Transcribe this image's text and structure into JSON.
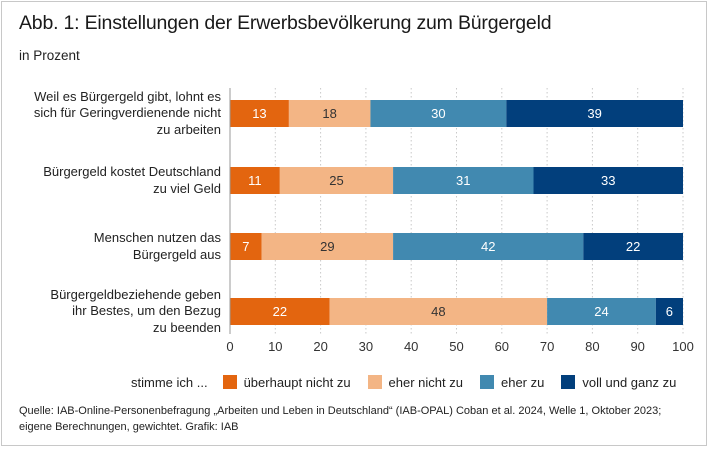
{
  "title": "Abb. 1: Einstellungen der Erwerbsbevölkerung zum Bürgergeld",
  "subtitle": "in Prozent",
  "chart_data": {
    "type": "bar",
    "orientation": "horizontal",
    "stacked": true,
    "title": "Abb. 1: Einstellungen der Erwerbsbevölkerung zum Bürgergeld",
    "subtitle": "in Prozent",
    "xlabel": "",
    "ylabel": "",
    "xlim": [
      0,
      100
    ],
    "xticks": [
      0,
      10,
      20,
      30,
      40,
      50,
      60,
      70,
      80,
      90,
      100
    ],
    "grid": "vertical dotted",
    "legend_position": "bottom",
    "legend_lead": "stimme ich ...",
    "categories": [
      [
        "Weil es Bürgergeld gibt, lohnt es",
        "sich für Geringverdienende nicht",
        "zu arbeiten"
      ],
      [
        "Bürgergeld kostet Deutschland",
        "zu viel Geld"
      ],
      [
        "Menschen nutzen das",
        "Bürgergeld aus"
      ],
      [
        "Bürgergeldbeziehende geben",
        "ihr Bestes, um den Bezug",
        "zu beenden"
      ]
    ],
    "series": [
      {
        "name": "überhaupt nicht zu",
        "color": "#e3650f",
        "label_color": "#ffffff",
        "values": [
          13,
          11,
          7,
          22
        ]
      },
      {
        "name": "eher nicht zu",
        "color": "#f3b585",
        "label_color": "#333333",
        "values": [
          18,
          25,
          29,
          48
        ]
      },
      {
        "name": "eher zu",
        "color": "#4189b0",
        "label_color": "#ffffff",
        "values": [
          30,
          31,
          42,
          24
        ]
      },
      {
        "name": "voll und ganz zu",
        "color": "#023f7c",
        "label_color": "#ffffff",
        "values": [
          39,
          33,
          22,
          6
        ]
      }
    ]
  },
  "source": {
    "line1": "Quelle: IAB-Online-Personenbefragung „Arbeiten und Leben in Deutschland“ (IAB-OPAL) Coban et al. 2024, Welle 1, Oktober 2023;",
    "line2": "eigene Berechnungen, gewichtet. Grafik: IAB"
  }
}
